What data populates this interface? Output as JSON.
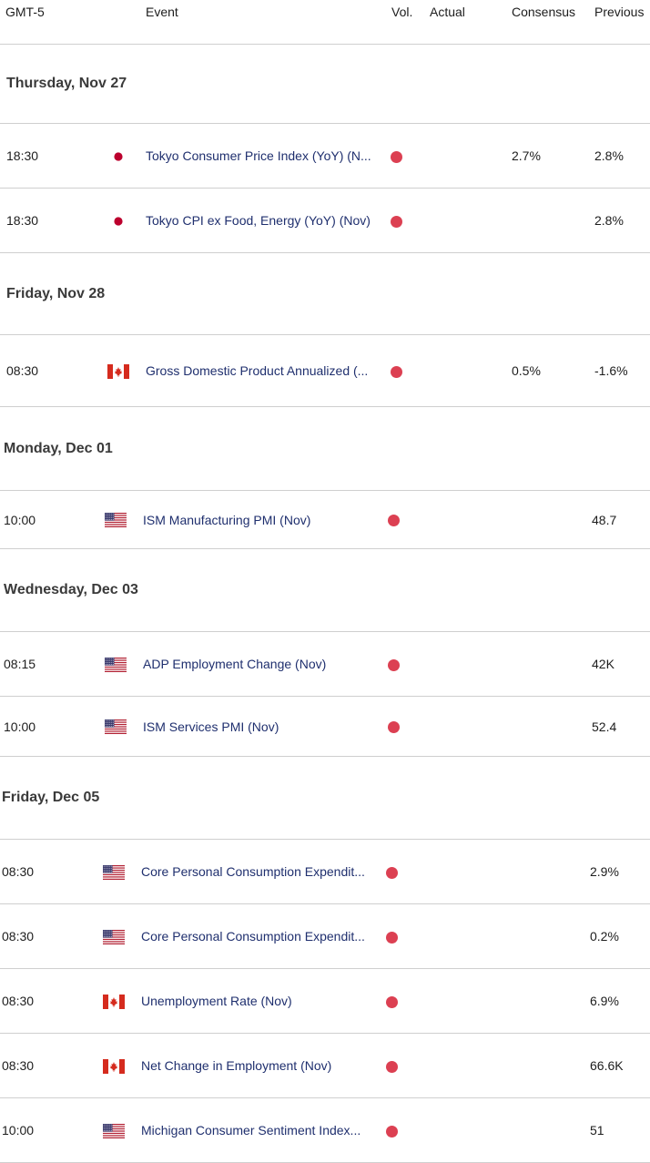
{
  "header": {
    "timezone": "GMT-5",
    "event": "Event",
    "vol": "Vol.",
    "actual": "Actual",
    "consensus": "Consensus",
    "previous": "Previous"
  },
  "colors": {
    "volatility_high": "#dc4052",
    "event_text": "#1f2f6e",
    "divider": "#cfcfcf"
  },
  "days": [
    {
      "label": "Thursday, Nov 27",
      "events": [
        {
          "time": "18:30",
          "country": "jp-flag-icon",
          "name": "Tokyo Consumer Price Index (YoY) (N...",
          "actual": "",
          "consensus": "2.7%",
          "previous": "2.8%"
        },
        {
          "time": "18:30",
          "country": "jp-flag-icon",
          "name": "Tokyo CPI ex Food, Energy (YoY) (Nov)",
          "actual": "",
          "consensus": "",
          "previous": "2.8%"
        }
      ]
    },
    {
      "label": "Friday, Nov 28",
      "events": [
        {
          "time": "08:30",
          "country": "ca-flag-icon",
          "name": "Gross Domestic Product Annualized (...",
          "actual": "",
          "consensus": "0.5%",
          "previous": "-1.6%"
        }
      ]
    },
    {
      "label": "Monday, Dec 01",
      "events": [
        {
          "time": "10:00",
          "country": "us-flag-icon",
          "name": "ISM Manufacturing PMI (Nov)",
          "actual": "",
          "consensus": "",
          "previous": "48.7"
        }
      ]
    },
    {
      "label": "Wednesday, Dec 03",
      "events": [
        {
          "time": "08:15",
          "country": "us-flag-icon",
          "name": "ADP Employment Change (Nov)",
          "actual": "",
          "consensus": "",
          "previous": "42K"
        },
        {
          "time": "10:00",
          "country": "us-flag-icon",
          "name": "ISM Services PMI (Nov)",
          "actual": "",
          "consensus": "",
          "previous": "52.4"
        }
      ]
    },
    {
      "label": "Friday, Dec 05",
      "events": [
        {
          "time": "08:30",
          "country": "us-flag-icon",
          "name": "Core Personal Consumption Expendit...",
          "actual": "",
          "consensus": "",
          "previous": "2.9%"
        },
        {
          "time": "08:30",
          "country": "us-flag-icon",
          "name": "Core Personal Consumption Expendit...",
          "actual": "",
          "consensus": "",
          "previous": "0.2%"
        },
        {
          "time": "08:30",
          "country": "ca-flag-icon",
          "name": "Unemployment Rate (Nov)",
          "actual": "",
          "consensus": "",
          "previous": "6.9%"
        },
        {
          "time": "08:30",
          "country": "ca-flag-icon",
          "name": "Net Change in Employment (Nov)",
          "actual": "",
          "consensus": "",
          "previous": "66.6K"
        },
        {
          "time": "10:00",
          "country": "us-flag-icon",
          "name": "Michigan Consumer Sentiment Index...",
          "actual": "",
          "consensus": "",
          "previous": "51"
        }
      ]
    }
  ]
}
